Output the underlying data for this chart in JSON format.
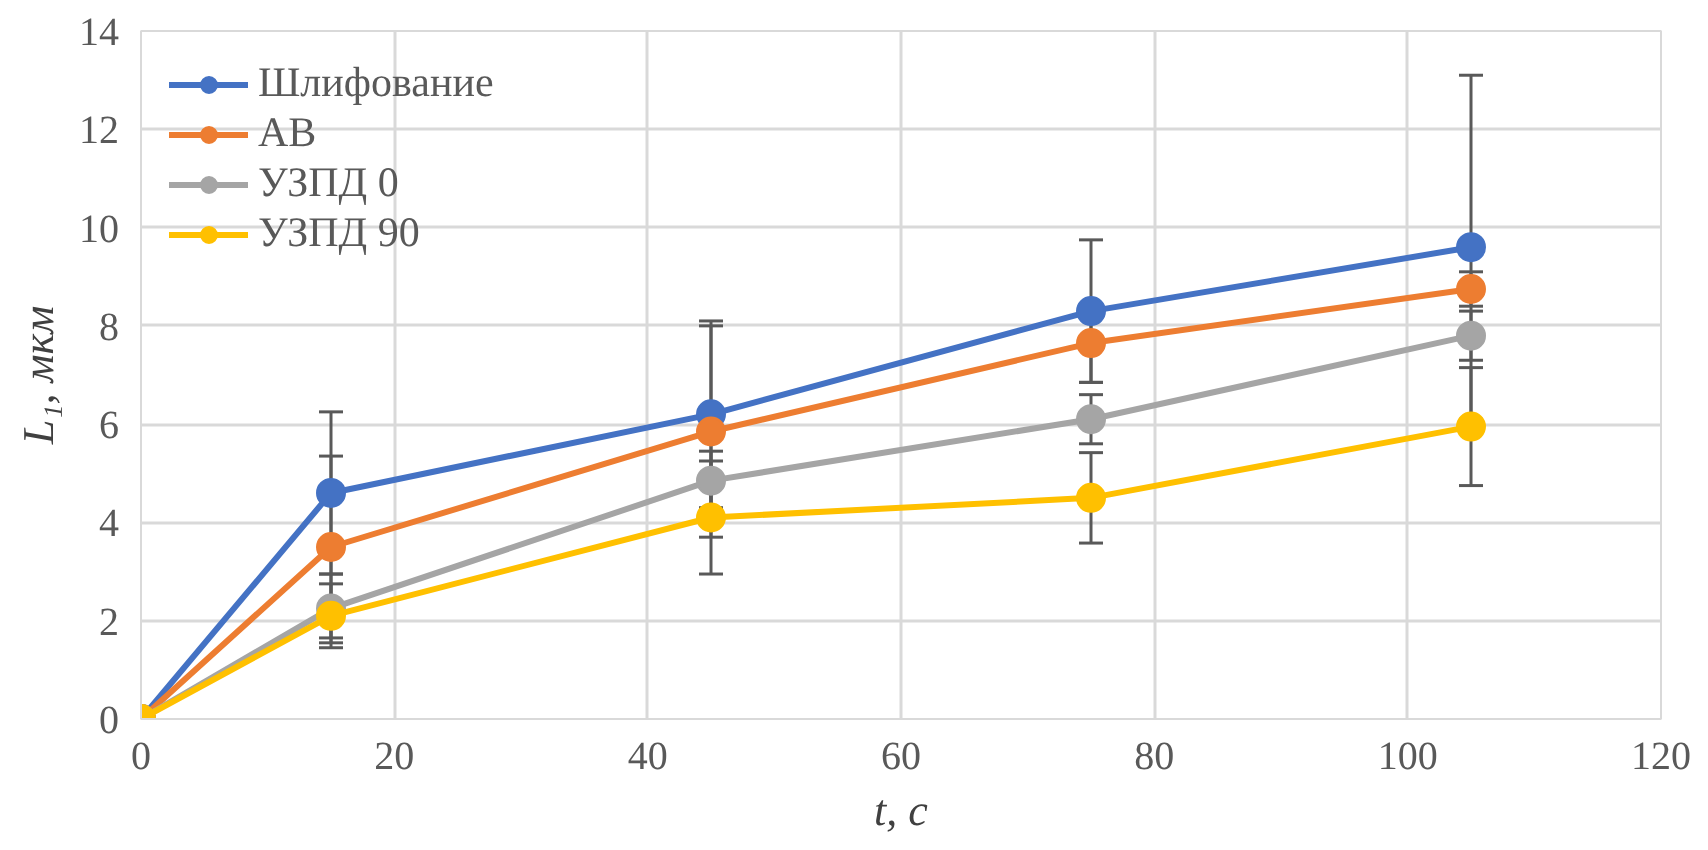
{
  "chart_data": {
    "type": "line",
    "xlabel": "t, с",
    "ylabel": "L₁, мкм",
    "x": [
      0,
      15,
      45,
      75,
      105
    ],
    "series": [
      {
        "name": "Шлифование",
        "color": "#4472c4",
        "values": [
          0,
          4.6,
          6.2,
          8.3,
          9.6
        ],
        "errors": [
          null,
          1.65,
          1.9,
          1.45,
          3.5
        ]
      },
      {
        "name": "АВ",
        "color": "#ed7d31",
        "values": [
          0,
          3.5,
          5.85,
          7.65,
          8.75
        ],
        "errors": [
          null,
          1.85,
          2.15,
          0.8,
          0.35
        ]
      },
      {
        "name": "УЗПД 0",
        "color": "#a5a5a5",
        "values": [
          0,
          2.25,
          4.85,
          6.1,
          7.8
        ],
        "errors": [
          null,
          0.7,
          0.6,
          0.5,
          0.5
        ]
      },
      {
        "name": "УЗПД 90",
        "color": "#ffc000",
        "values": [
          0,
          2.1,
          4.1,
          4.5,
          5.95
        ],
        "errors": [
          null,
          0.65,
          1.15,
          0.92,
          1.2
        ]
      }
    ],
    "xlim": [
      0,
      120
    ],
    "xticks": [
      0,
      20,
      40,
      60,
      80,
      100,
      120
    ],
    "ylim": [
      0,
      14
    ],
    "yticks": [
      0,
      2,
      4,
      6,
      8,
      10,
      12,
      14
    ],
    "grid": true,
    "legend": "top left",
    "marker": "circle",
    "line_style": "solid"
  }
}
